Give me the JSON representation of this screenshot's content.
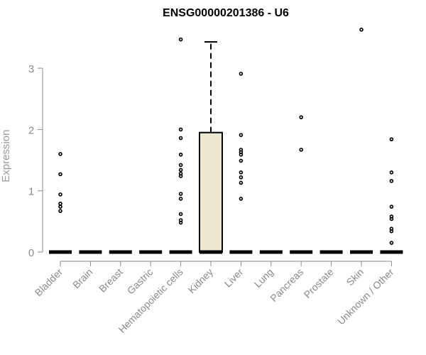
{
  "chart_data": {
    "type": "box",
    "title": "ENSG00000201386 - U6",
    "xlabel": "",
    "ylabel": "Expression",
    "ylim": [
      0,
      3.6
    ],
    "yticks": [
      0,
      1,
      2,
      3
    ],
    "grid": false,
    "box_fill": "#ede8d0",
    "categories": [
      "Bladder",
      "Brain",
      "Breast",
      "Gastric",
      "Hematopoietic cells",
      "Kidney",
      "Liver",
      "Lung",
      "Pancreas",
      "Prostate",
      "Skin",
      "Unknown / Other"
    ],
    "boxes": [
      {
        "category": "Bladder",
        "q1": 0,
        "median": 0,
        "q3": 0,
        "whisker_low": 0,
        "whisker_high": 0
      },
      {
        "category": "Brain",
        "q1": 0,
        "median": 0,
        "q3": 0,
        "whisker_low": 0,
        "whisker_high": 0
      },
      {
        "category": "Breast",
        "q1": 0,
        "median": 0,
        "q3": 0,
        "whisker_low": 0,
        "whisker_high": 0
      },
      {
        "category": "Gastric",
        "q1": 0,
        "median": 0,
        "q3": 0,
        "whisker_low": 0,
        "whisker_high": 0
      },
      {
        "category": "Hematopoietic cells",
        "q1": 0,
        "median": 0,
        "q3": 0,
        "whisker_low": 0,
        "whisker_high": 0
      },
      {
        "category": "Kidney",
        "q1": 0,
        "median": 0,
        "q3": 1.95,
        "whisker_low": 0,
        "whisker_high": 3.43
      },
      {
        "category": "Liver",
        "q1": 0,
        "median": 0,
        "q3": 0,
        "whisker_low": 0,
        "whisker_high": 0
      },
      {
        "category": "Lung",
        "q1": 0,
        "median": 0,
        "q3": 0,
        "whisker_low": 0,
        "whisker_high": 0
      },
      {
        "category": "Pancreas",
        "q1": 0,
        "median": 0,
        "q3": 0,
        "whisker_low": 0,
        "whisker_high": 0
      },
      {
        "category": "Prostate",
        "q1": 0,
        "median": 0,
        "q3": 0,
        "whisker_low": 0,
        "whisker_high": 0
      },
      {
        "category": "Skin",
        "q1": 0,
        "median": 0,
        "q3": 0,
        "whisker_low": 0,
        "whisker_high": 0
      },
      {
        "category": "Unknown / Other",
        "q1": 0,
        "median": 0,
        "q3": 0,
        "whisker_low": 0,
        "whisker_high": 0
      }
    ],
    "outliers": [
      {
        "category": "Bladder",
        "values": [
          1.6,
          1.27,
          0.94,
          0.79,
          0.74,
          0.67
        ]
      },
      {
        "category": "Brain",
        "values": []
      },
      {
        "category": "Breast",
        "values": []
      },
      {
        "category": "Gastric",
        "values": []
      },
      {
        "category": "Hematopoietic cells",
        "values": [
          3.47,
          2.0,
          1.86,
          1.59,
          1.42,
          1.34,
          1.28,
          1.24,
          0.95,
          0.87,
          0.62,
          0.52,
          0.48
        ]
      },
      {
        "category": "Kidney",
        "values": []
      },
      {
        "category": "Liver",
        "values": [
          2.91,
          1.91,
          1.67,
          1.63,
          1.59,
          1.49,
          1.3,
          1.22,
          1.13,
          0.87
        ]
      },
      {
        "category": "Lung",
        "values": []
      },
      {
        "category": "Pancreas",
        "values": [
          2.2,
          1.67
        ]
      },
      {
        "category": "Prostate",
        "values": []
      },
      {
        "category": "Skin",
        "values": [
          3.63
        ]
      },
      {
        "category": "Unknown / Other",
        "values": [
          1.84,
          1.3,
          1.16,
          0.74,
          0.58,
          0.54,
          0.38,
          0.34,
          0.15
        ]
      }
    ]
  }
}
